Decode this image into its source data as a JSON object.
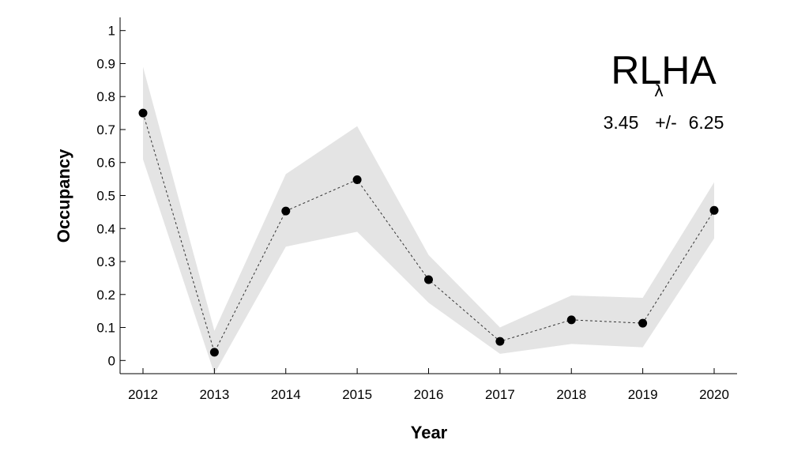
{
  "chart_data": {
    "type": "line",
    "x": [
      "2012",
      "2013",
      "2014",
      "2015",
      "2016",
      "2017",
      "2018",
      "2019",
      "2020"
    ],
    "series": [
      {
        "values": [
          0.75,
          0.025,
          0.453,
          0.548,
          0.245,
          0.058,
          0.123,
          0.113,
          0.455
        ],
        "lower": [
          0.61,
          -0.04,
          0.345,
          0.39,
          0.175,
          0.02,
          0.05,
          0.04,
          0.37
        ],
        "upper": [
          0.89,
          0.09,
          0.565,
          0.71,
          0.32,
          0.1,
          0.197,
          0.19,
          0.54
        ]
      }
    ],
    "xlabel": "Year",
    "ylabel": "Occupancy",
    "ylim": [
      -0.04,
      1.04
    ],
    "yticks": [
      "0",
      "0.1",
      "0.2",
      "0.3",
      "0.4",
      "0.5",
      "0.6",
      "0.7",
      "0.8",
      "0.9",
      "1"
    ],
    "ytick_values": [
      0,
      0.1,
      0.2,
      0.3,
      0.4,
      0.5,
      0.6,
      0.7,
      0.8,
      0.9,
      1
    ],
    "grid": false,
    "line_style": "dashed",
    "annotations": {
      "site_code": "RLHA",
      "lambda_symbol": "λ",
      "trend_value": "3.45",
      "trend_separator": "+/-",
      "trend_error": "6.25"
    },
    "colors": {
      "ci_band": "#e4e4e4",
      "marker": "#000000",
      "line": "#333333",
      "axis": "#000000"
    }
  }
}
